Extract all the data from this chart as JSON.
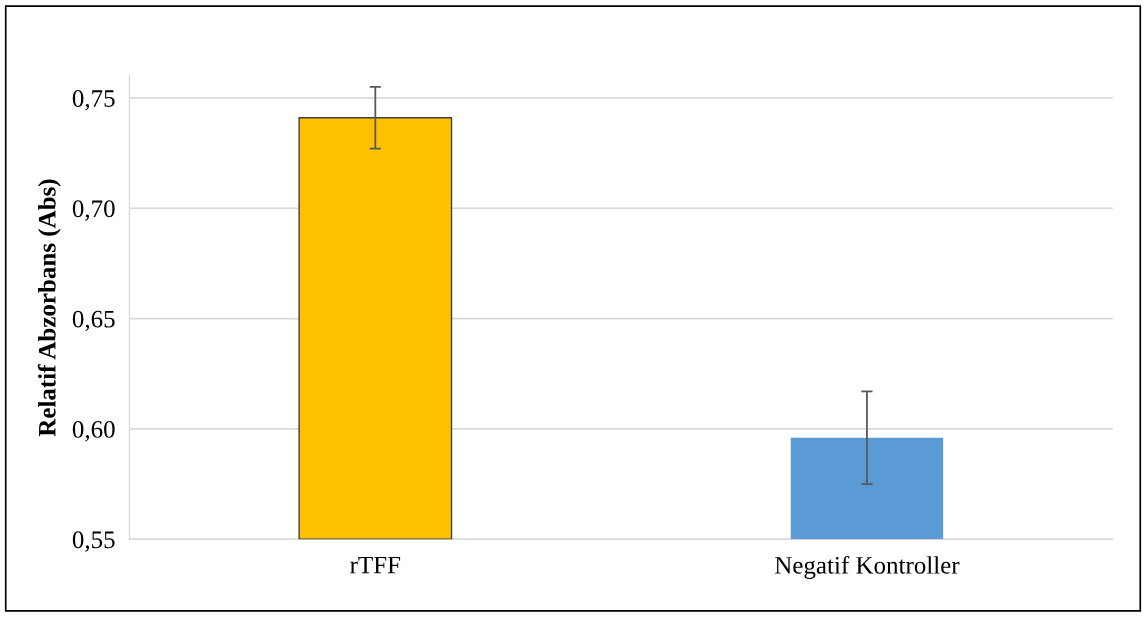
{
  "chart_data": {
    "type": "bar",
    "ylabel": "Relatif Abzorbans (Abs)",
    "categories": [
      "rTFF",
      "Negatif Kontroller"
    ],
    "values": [
      0.741,
      0.596
    ],
    "colors": [
      "#ffc000",
      "#5b9bd5"
    ],
    "errors": [
      0.014,
      0.021
    ],
    "ylim": [
      0.55,
      0.76
    ],
    "yticks": [
      {
        "value": 0.55,
        "label": "0,55"
      },
      {
        "value": 0.6,
        "label": "0,60"
      },
      {
        "value": 0.65,
        "label": "0,65"
      },
      {
        "value": 0.7,
        "label": "0,70"
      },
      {
        "value": 0.75,
        "label": "0,75"
      }
    ],
    "grid": "y",
    "legend": false
  }
}
